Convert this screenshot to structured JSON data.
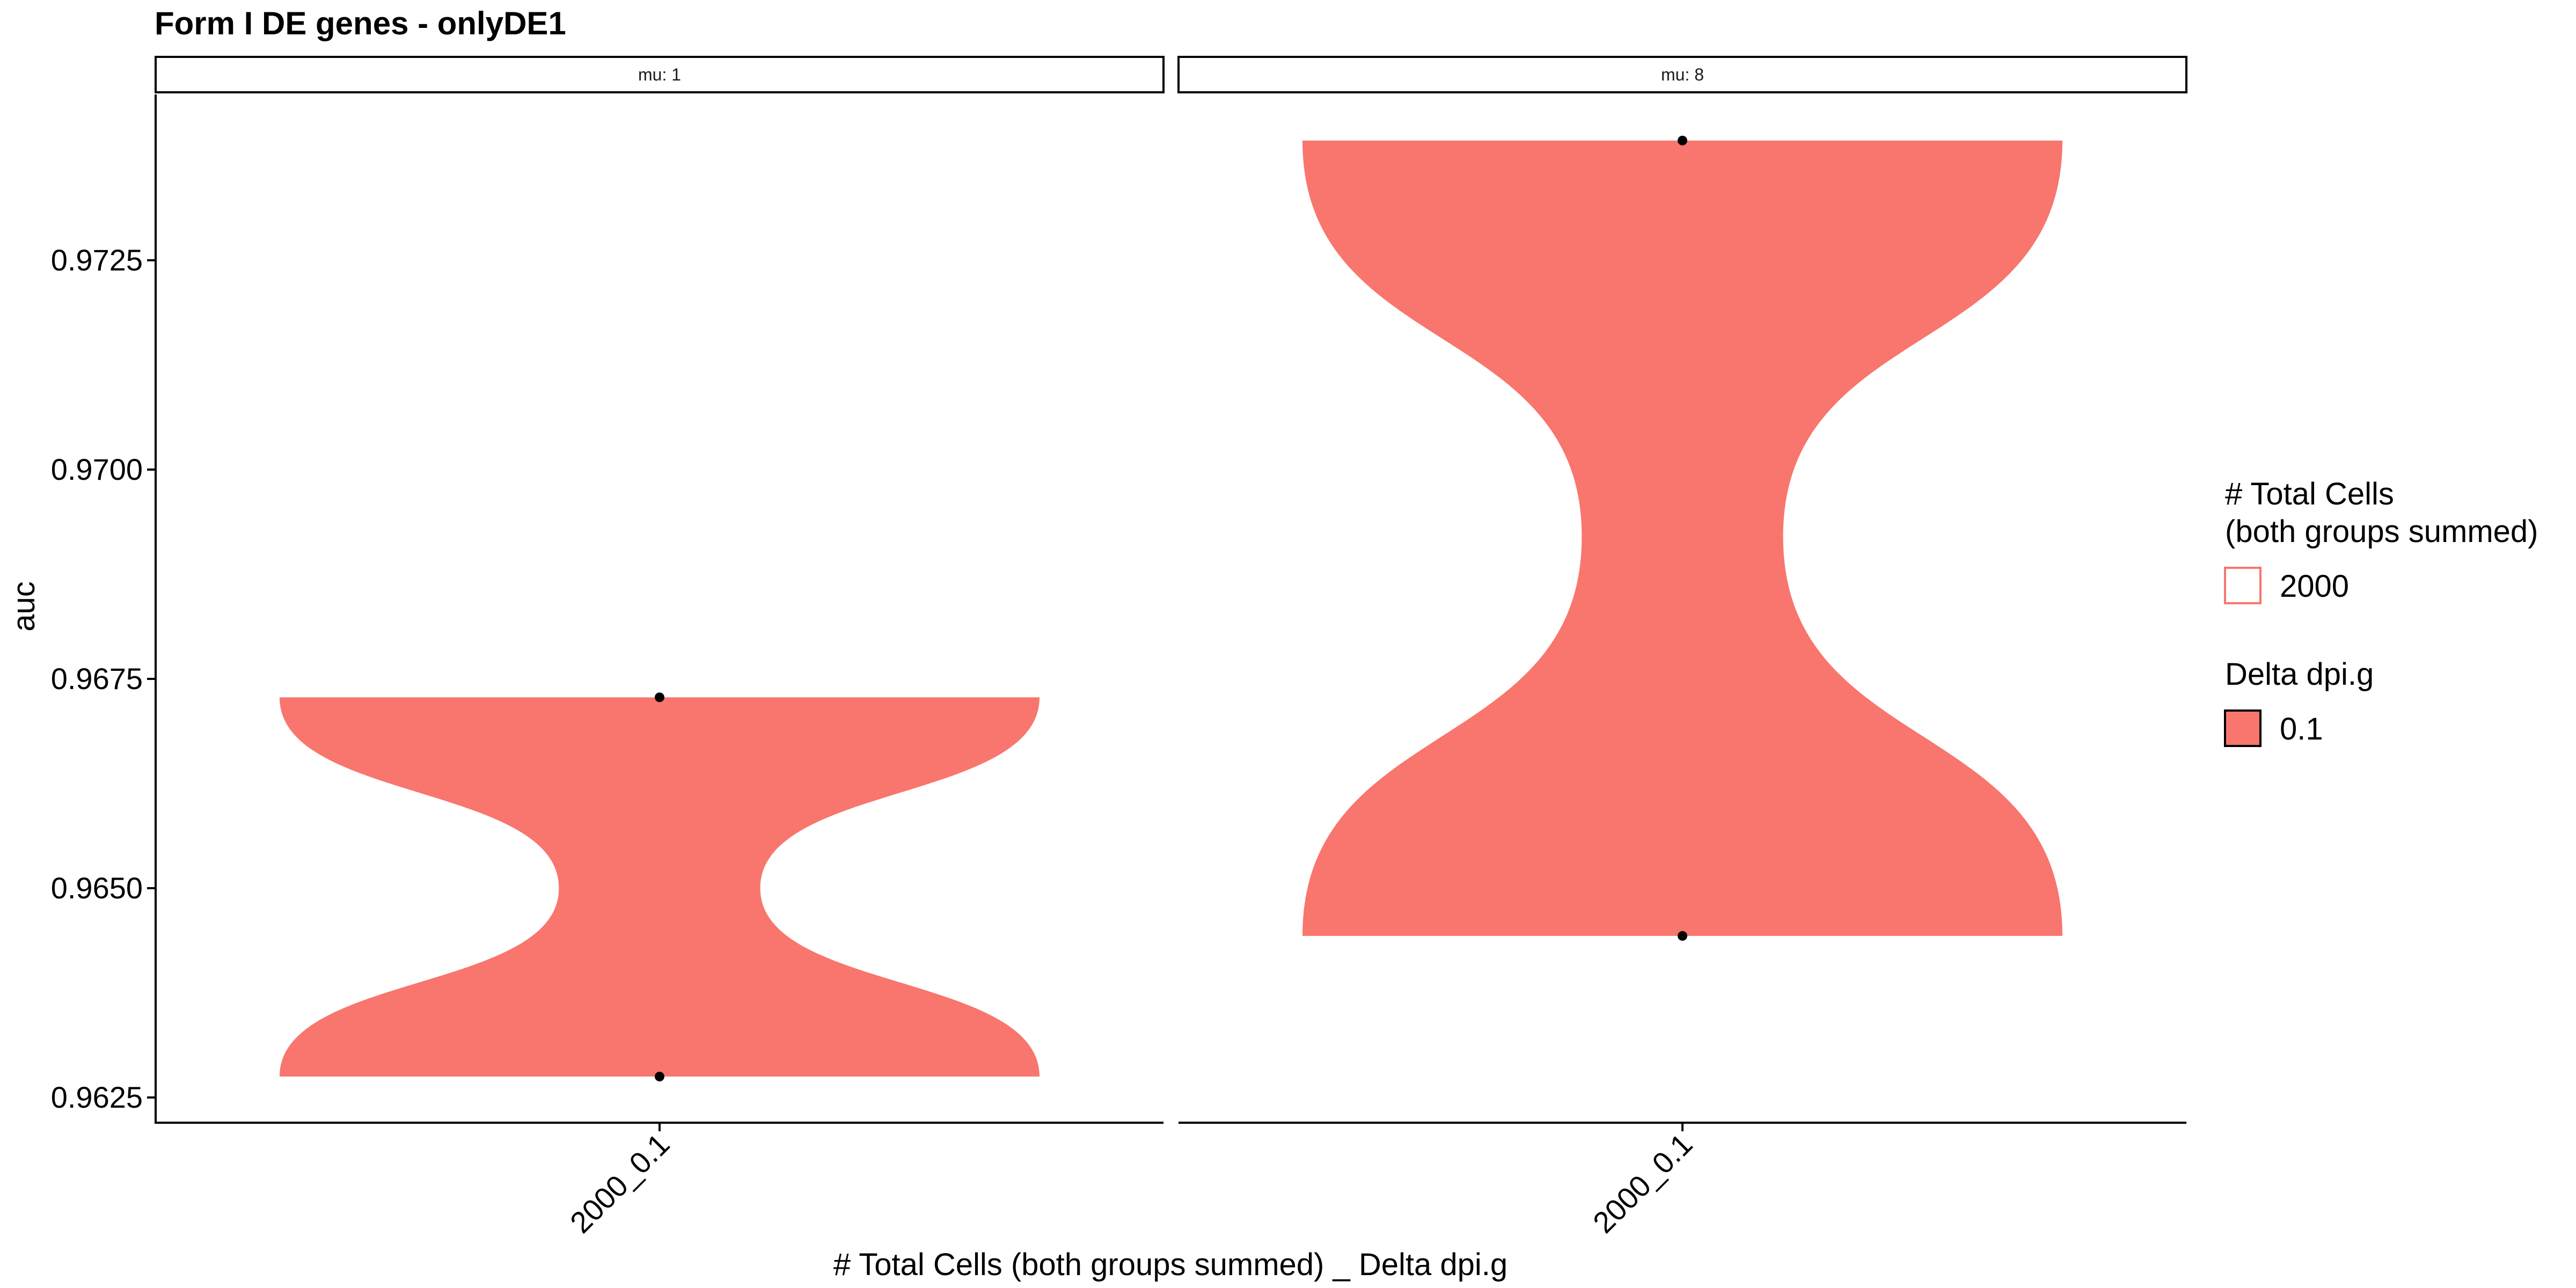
{
  "chart_data": {
    "type": "violin",
    "title": "Form I DE genes - onlyDE1",
    "xlabel": "# Total Cells (both groups summed) _ Delta dpi.g",
    "ylabel": "auc",
    "ylim": [
      0.962,
      0.9738
    ],
    "yticks": [
      0.9625,
      0.965,
      0.9675,
      0.97,
      0.9725
    ],
    "ytick_labels": [
      "0.9625",
      "0.9650",
      "0.9675",
      "0.9700",
      "0.9725"
    ],
    "facets": [
      {
        "label": "mu: 1",
        "category": "2000_0.1",
        "points": [
          0.96728,
          0.96275
        ],
        "violin": {
          "min": 0.96275,
          "max": 0.96728,
          "waist": 0.965
        }
      },
      {
        "label": "mu: 8",
        "category": "2000_0.1",
        "points": [
          0.97393,
          0.96443
        ],
        "violin": {
          "min": 0.96443,
          "max": 0.97393,
          "waist": 0.9692
        }
      }
    ],
    "legend": {
      "position": "right",
      "groups": [
        {
          "title_lines": [
            "# Total Cells",
            "(both groups summed)"
          ],
          "entries": [
            {
              "label": "2000",
              "style": "outline",
              "color": "#F8766D"
            }
          ]
        },
        {
          "title_lines": [
            "Delta dpi.g"
          ],
          "entries": [
            {
              "label": "0.1",
              "style": "filled",
              "color": "#F8766D"
            }
          ]
        }
      ]
    },
    "colors": {
      "fill": "#F8766D",
      "point": "#000000",
      "axis": "#000000"
    },
    "grid": false
  }
}
